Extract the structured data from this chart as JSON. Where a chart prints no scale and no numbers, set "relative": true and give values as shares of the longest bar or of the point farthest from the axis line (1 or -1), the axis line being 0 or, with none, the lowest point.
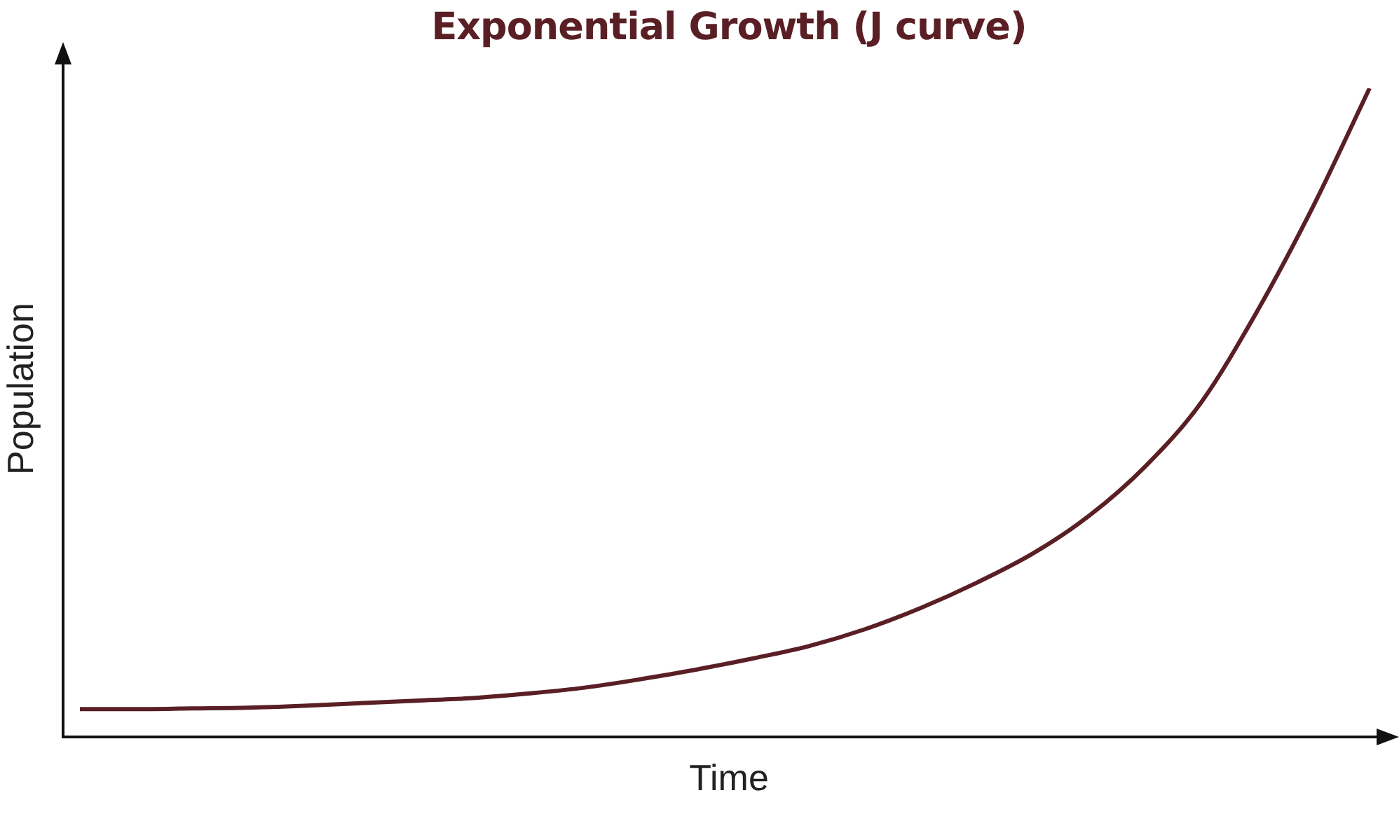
{
  "chart_data": {
    "type": "line",
    "title": "Exponential Growth (J curve)",
    "xlabel": "Time",
    "ylabel": "Population",
    "relative": true,
    "marker": "none",
    "legend": false,
    "categories": [
      null,
      null,
      null,
      null,
      null,
      null,
      null,
      null,
      null,
      null,
      null,
      null,
      null,
      null,
      null,
      null,
      null,
      null,
      null,
      null,
      null,
      null,
      null,
      null
    ],
    "series": [
      {
        "color": "#5a1f24",
        "values": [
          0.043,
          0.043,
          0.044,
          0.045,
          0.048,
          0.052,
          0.056,
          0.06,
          0.067,
          0.076,
          0.089,
          0.104,
          0.121,
          0.14,
          0.166,
          0.199,
          0.238,
          0.283,
          0.341,
          0.417,
          0.516,
          0.657,
          0.819,
          1
        ]
      }
    ]
  }
}
